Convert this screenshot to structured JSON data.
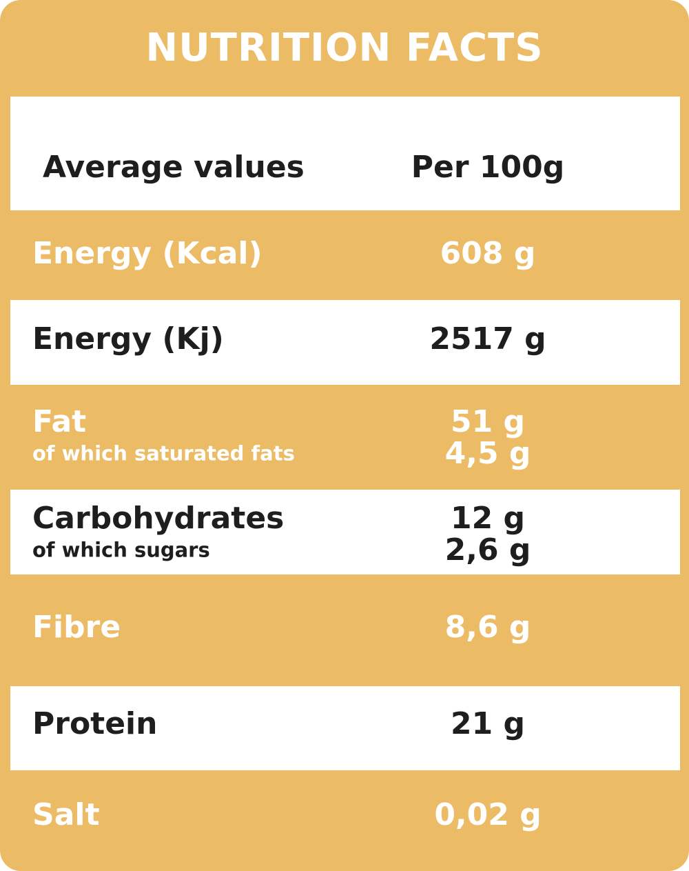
{
  "header": {
    "title": "NUTRITION FACTS"
  },
  "table": {
    "columns": [
      "Average values",
      "Per 100g"
    ],
    "rows": [
      {
        "label": "Energy (Kcal)",
        "value": "608 g"
      },
      {
        "label": "Energy (Kj)",
        "value": "2517 g"
      },
      {
        "label": "Fat",
        "value": "51 g",
        "sublabel": "of which saturated fats",
        "subvalue": "4,5 g"
      },
      {
        "label": "Carbohydrates",
        "value": "12 g",
        "sublabel": "of which sugars",
        "subvalue": "2,6 g"
      },
      {
        "label": "Fibre",
        "value": "8,6 g"
      },
      {
        "label": "Protein",
        "value": "21 g"
      },
      {
        "label": "Salt",
        "value": "0,02 g"
      }
    ]
  }
}
